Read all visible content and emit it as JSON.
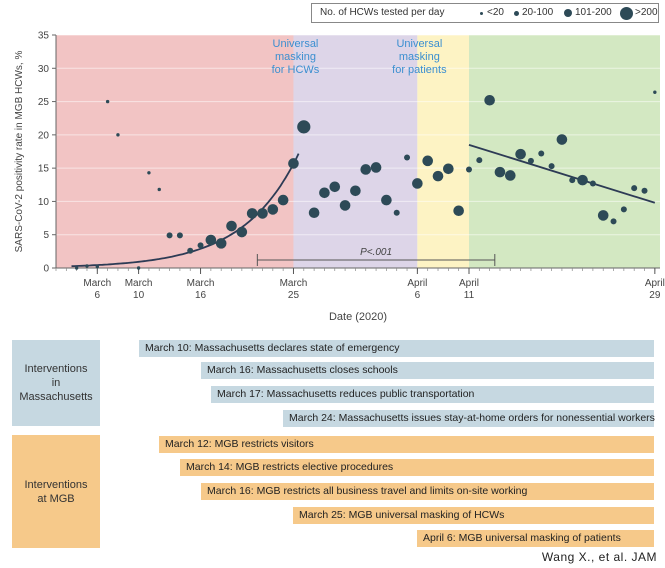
{
  "chart_data": {
    "type": "scatter",
    "ylabel": "SARS-CoV-2 positivity rate in MGB HCWs, %",
    "xlabel": "Date (2020)",
    "ylim": [
      0,
      35
    ],
    "yticks": [
      0,
      5,
      10,
      15,
      20,
      25,
      30,
      35
    ],
    "xticks": [
      {
        "day": 6,
        "line1": "March",
        "line2": "6"
      },
      {
        "day": 10,
        "line1": "March",
        "line2": "10"
      },
      {
        "day": 16,
        "line1": "March",
        "line2": "16"
      },
      {
        "day": 25,
        "line1": "March",
        "line2": "25"
      },
      {
        "day": 37,
        "line1": "April",
        "line2": "6"
      },
      {
        "day": 42,
        "line1": "April",
        "line2": "11"
      },
      {
        "day": 60,
        "line1": "April",
        "line2": "29"
      }
    ],
    "x_note": "day index: March 1 = 1, April 1 = 32",
    "phases": [
      {
        "from": 2,
        "to": 25,
        "color": "#f2c4c4"
      },
      {
        "from": 25,
        "to": 37,
        "color": "#ddd5e8"
      },
      {
        "from": 37,
        "to": 42,
        "color": "#fdf3c4"
      },
      {
        "from": 42,
        "to": 60.5,
        "color": "#d3e8c2"
      }
    ],
    "phase_labels": [
      {
        "day": 25,
        "text": [
          "Universal",
          "masking",
          "for HCWs"
        ]
      },
      {
        "day": 37,
        "text": [
          "Universal",
          "masking",
          "for patients"
        ]
      }
    ],
    "legend": {
      "title": "No. of HCWs tested per day",
      "sizes": [
        "<20",
        "20-100",
        "101-200",
        ">200"
      ]
    },
    "point_color": "#2d4a57",
    "points": [
      {
        "day": 4,
        "y": 0,
        "size": "<20"
      },
      {
        "day": 5,
        "y": 0.3,
        "size": "<20"
      },
      {
        "day": 6,
        "y": 0.2,
        "size": "<20"
      },
      {
        "day": 7,
        "y": 25,
        "size": "<20"
      },
      {
        "day": 8,
        "y": 20,
        "size": "<20"
      },
      {
        "day": 10,
        "y": 0,
        "size": "<20"
      },
      {
        "day": 11,
        "y": 14.3,
        "size": "<20"
      },
      {
        "day": 12,
        "y": 11.8,
        "size": "<20"
      },
      {
        "day": 13,
        "y": 4.9,
        "size": "20-100"
      },
      {
        "day": 14,
        "y": 4.9,
        "size": "20-100"
      },
      {
        "day": 15,
        "y": 2.6,
        "size": "20-100"
      },
      {
        "day": 16,
        "y": 3.4,
        "size": "20-100"
      },
      {
        "day": 17,
        "y": 4.2,
        "size": "101-200"
      },
      {
        "day": 18,
        "y": 3.7,
        "size": "101-200"
      },
      {
        "day": 19,
        "y": 6.3,
        "size": "101-200"
      },
      {
        "day": 20,
        "y": 5.4,
        "size": "101-200"
      },
      {
        "day": 21,
        "y": 8.2,
        "size": "101-200"
      },
      {
        "day": 22,
        "y": 8.2,
        "size": "101-200"
      },
      {
        "day": 23,
        "y": 8.8,
        "size": "101-200"
      },
      {
        "day": 24,
        "y": 10.2,
        "size": "101-200"
      },
      {
        "day": 25,
        "y": 15.7,
        "size": "101-200"
      },
      {
        "day": 26,
        "y": 21.2,
        "size": ">200"
      },
      {
        "day": 27,
        "y": 8.3,
        "size": "101-200"
      },
      {
        "day": 28,
        "y": 11.3,
        "size": "101-200"
      },
      {
        "day": 29,
        "y": 12.2,
        "size": "101-200"
      },
      {
        "day": 30,
        "y": 9.4,
        "size": "101-200"
      },
      {
        "day": 31,
        "y": 11.6,
        "size": "101-200"
      },
      {
        "day": 32,
        "y": 14.8,
        "size": "101-200"
      },
      {
        "day": 33,
        "y": 15.1,
        "size": "101-200"
      },
      {
        "day": 34,
        "y": 10.2,
        "size": "101-200"
      },
      {
        "day": 35,
        "y": 8.3,
        "size": "20-100"
      },
      {
        "day": 36,
        "y": 16.6,
        "size": "20-100"
      },
      {
        "day": 37,
        "y": 12.7,
        "size": "101-200"
      },
      {
        "day": 38,
        "y": 16.1,
        "size": "101-200"
      },
      {
        "day": 39,
        "y": 13.8,
        "size": "101-200"
      },
      {
        "day": 40,
        "y": 14.9,
        "size": "101-200"
      },
      {
        "day": 41,
        "y": 8.6,
        "size": "101-200"
      },
      {
        "day": 42,
        "y": 14.8,
        "size": "20-100"
      },
      {
        "day": 43,
        "y": 16.2,
        "size": "20-100"
      },
      {
        "day": 44,
        "y": 25.2,
        "size": "101-200"
      },
      {
        "day": 45,
        "y": 14.4,
        "size": "101-200"
      },
      {
        "day": 46,
        "y": 13.9,
        "size": "101-200"
      },
      {
        "day": 47,
        "y": 17.1,
        "size": "101-200"
      },
      {
        "day": 48,
        "y": 16.1,
        "size": "20-100"
      },
      {
        "day": 49,
        "y": 17.2,
        "size": "20-100"
      },
      {
        "day": 50,
        "y": 15.3,
        "size": "20-100"
      },
      {
        "day": 51,
        "y": 19.3,
        "size": "101-200"
      },
      {
        "day": 52,
        "y": 13.2,
        "size": "20-100"
      },
      {
        "day": 53,
        "y": 13.2,
        "size": "101-200"
      },
      {
        "day": 54,
        "y": 12.7,
        "size": "20-100"
      },
      {
        "day": 55,
        "y": 7.9,
        "size": "101-200"
      },
      {
        "day": 56,
        "y": 7,
        "size": "20-100"
      },
      {
        "day": 57,
        "y": 8.8,
        "size": "20-100"
      },
      {
        "day": 58,
        "y": 12,
        "size": "20-100"
      },
      {
        "day": 59,
        "y": 11.6,
        "size": "20-100"
      },
      {
        "day": 60,
        "y": 26.4,
        "size": "<20"
      }
    ],
    "trend_before": {
      "from": 3.5,
      "to": 25.5,
      "a": 0.25,
      "b": 0.188
    },
    "trend_after": {
      "from": 42,
      "to": 60,
      "y_from": 18.5,
      "y_to": 9.8
    },
    "pvalue": {
      "text": "P<.001",
      "from": 21.5,
      "to": 44.5,
      "y": 1.2
    }
  },
  "interventions": {
    "massachusetts_label": "Interventions\nin\nMassachusetts",
    "mgb_label": "Interventions\nat MGB",
    "massachusetts": [
      {
        "day": 10,
        "text": "March 10: Massachusetts declares state of emergency"
      },
      {
        "day": 16,
        "text": "March 16: Massachusetts closes schools"
      },
      {
        "day": 17,
        "text": "March 17: Massachusetts reduces public transportation"
      },
      {
        "day": 24,
        "text": "March 24: Massachusetts issues stay-at-home orders for nonessential workers"
      }
    ],
    "mgb": [
      {
        "day": 12,
        "text": "March 12: MGB restricts visitors"
      },
      {
        "day": 14,
        "text": "March 14: MGB restricts elective procedures"
      },
      {
        "day": 16,
        "text": "March 16: MGB restricts all business travel and limits on-site working"
      },
      {
        "day": 25,
        "text": "March 25: MGB universal masking of HCWs"
      },
      {
        "day": 37,
        "text": "April 6: MGB universal masking of patients"
      }
    ]
  },
  "credit": "Wang X., et al. JAM"
}
